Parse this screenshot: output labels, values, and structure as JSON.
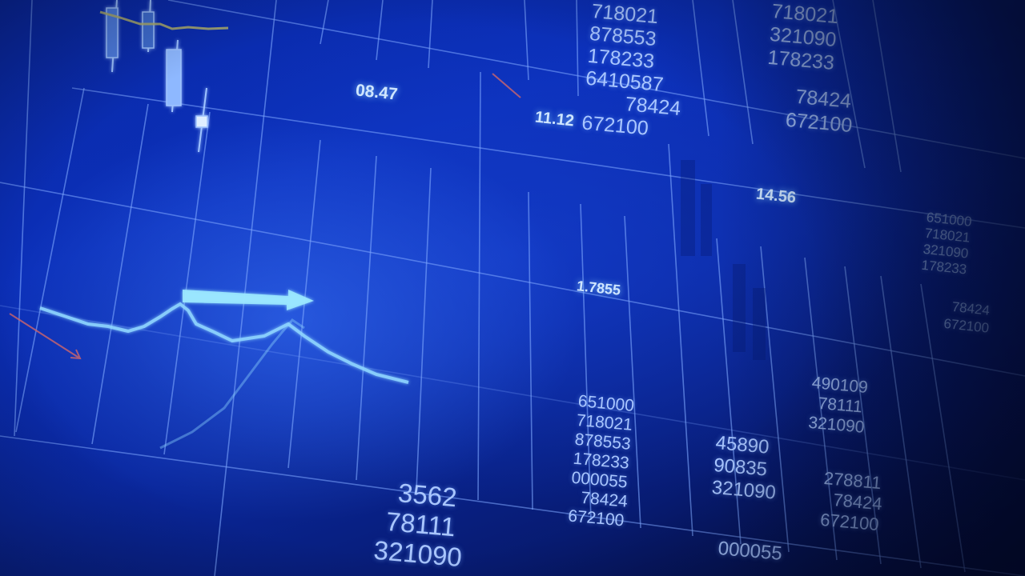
{
  "top_stacks": {
    "center": [
      "718021",
      "878553",
      "178233",
      "6410587",
      "78424",
      "672100"
    ],
    "right": [
      "718021",
      "321090",
      "178233"
    ],
    "right_lower": [
      "78424",
      "672100"
    ]
  },
  "labels": {
    "label_1": "08.47",
    "label_2": "11.12",
    "label_3": "14.56",
    "label_4": "1.7855"
  },
  "right_edge_stack": [
    "651000",
    "718021",
    "321090",
    "178233"
  ],
  "right_edge_stack_2": [
    "78424",
    "672100"
  ],
  "bottom_stacks": {
    "stack_a": [
      "3562",
      "78111",
      "321090"
    ],
    "stack_b": [
      "651000",
      "718021",
      "878553",
      "178233",
      "000055",
      "78424",
      "672100"
    ],
    "stack_c": [
      "45890",
      "90835",
      "321090"
    ],
    "stack_d": [
      "490109",
      "78111",
      "321090"
    ],
    "stack_e": [
      "278811",
      "78424",
      "672100"
    ],
    "stack_f": [
      "000055"
    ]
  },
  "colors": {
    "grid": "#7fa8ff",
    "line": "#8fd6ff",
    "arrow": "#9be8ff",
    "red_arrow": "#d0666b",
    "olive_line": "#b4b36a"
  }
}
